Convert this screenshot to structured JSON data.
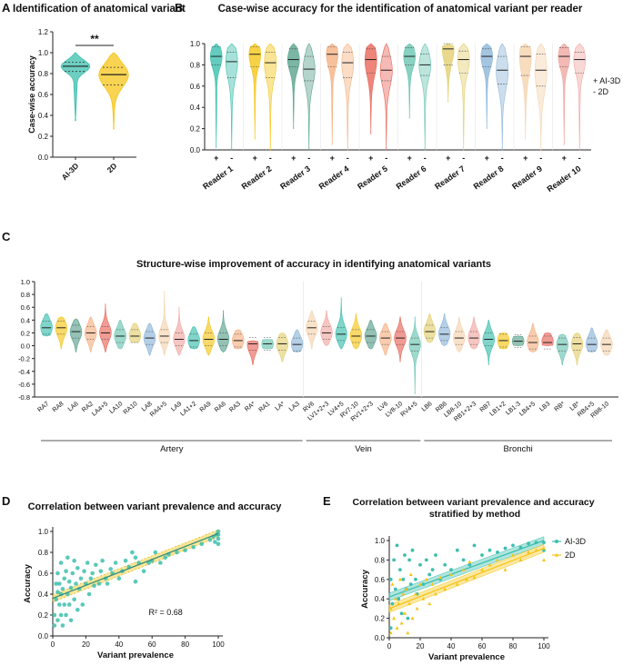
{
  "figure": {
    "panel_letters": [
      "A",
      "B",
      "C",
      "D",
      "E"
    ]
  },
  "colors": {
    "teal": "#3cbfae",
    "yellow": "#f5c518",
    "axis": "#222222",
    "text": "#111111"
  },
  "chart_data": [
    {
      "id": "A",
      "type": "violin",
      "title": "Identification of anatomical variant",
      "ylabel": "Case-wise accuracy",
      "ylim": [
        0,
        1.2
      ],
      "yticks": [
        "0.0",
        "0.2",
        "0.4",
        "0.6",
        "0.8",
        "1.0",
        "1.2"
      ],
      "categories": [
        "AI-3D",
        "2D"
      ],
      "series": [
        {
          "name": "AI-3D",
          "min": 0.35,
          "max": 1.0,
          "q1": 0.82,
          "median": 0.87,
          "q3": 0.91,
          "color": "#3cbfae"
        },
        {
          "name": "2D",
          "min": 0.27,
          "max": 1.0,
          "q1": 0.69,
          "median": 0.79,
          "q3": 0.86,
          "color": "#f5c518"
        }
      ],
      "significance": "**"
    },
    {
      "id": "B",
      "type": "violin",
      "title": "Case-wise accuracy for the identification of anatomical variant per reader",
      "ylim": [
        0,
        1.0
      ],
      "yticks": [
        "0.0",
        "0.2",
        "0.4",
        "0.6",
        "0.8",
        "1.0"
      ],
      "categories": [
        "Reader 1",
        "Reader 2",
        "Reader 3",
        "Reader 4",
        "Reader 5",
        "Reader 6",
        "Reader 7",
        "Reader 8",
        "Reader 9",
        "Reader 10"
      ],
      "pair_labels": [
        "+",
        "-"
      ],
      "legend": [
        "+ AI-3D",
        "- 2D"
      ],
      "colors": [
        "#3cbfae",
        "#f5c518",
        "#5aa28d",
        "#f5b182",
        "#e8665a",
        "#6cc5b2",
        "#e3cf72",
        "#8db6d8",
        "#f5d3ae",
        "#f0a7a2"
      ],
      "series": [
        {
          "name": "AI-3D",
          "min": [
            0.02,
            0.1,
            0.2,
            0.05,
            0.15,
            0.3,
            0.45,
            0.2,
            0.1,
            0.05
          ],
          "median": [
            0.88,
            0.9,
            0.85,
            0.9,
            0.85,
            0.88,
            0.95,
            0.88,
            0.88,
            0.88
          ],
          "q1": [
            0.8,
            0.78,
            0.78,
            0.78,
            0.72,
            0.8,
            0.8,
            0.78,
            0.7,
            0.78
          ],
          "q3": [
            0.97,
            0.97,
            0.95,
            0.97,
            0.95,
            0.96,
            1.0,
            0.95,
            0.97,
            0.96
          ]
        },
        {
          "name": "2D",
          "min": [
            0.0,
            0.0,
            0.0,
            0.0,
            0.0,
            0.0,
            0.0,
            0.0,
            0.0,
            0.0
          ],
          "median": [
            0.83,
            0.82,
            0.76,
            0.82,
            0.75,
            0.8,
            0.85,
            0.75,
            0.75,
            0.85
          ],
          "q1": [
            0.68,
            0.68,
            0.65,
            0.68,
            0.65,
            0.7,
            0.72,
            0.62,
            0.6,
            0.72
          ],
          "q3": [
            0.92,
            0.92,
            0.88,
            0.92,
            0.88,
            0.9,
            0.93,
            0.88,
            0.9,
            0.92
          ]
        }
      ]
    },
    {
      "id": "C",
      "type": "violin",
      "title": "Structure-wise improvement of accuracy in identifying anatomical variants",
      "ylim": [
        -0.8,
        1.0
      ],
      "yticks": [
        "-0.8",
        "-0.6",
        "-0.4",
        "-0.2",
        "0.0",
        "0.2",
        "0.4",
        "0.6",
        "0.8",
        "1.0"
      ],
      "categories": [
        "RA7",
        "RA8",
        "LA6",
        "RA2",
        "LA4+5",
        "LA10",
        "RA10",
        "LA8",
        "RA4+5",
        "LA9",
        "LA1+2",
        "RA9",
        "RA6",
        "RA3",
        "RA*",
        "RA1",
        "LA*",
        "LA3",
        "RV6",
        "LV1+2+3",
        "LV4+5",
        "RV7-10",
        "RV1+2+3",
        "LV6",
        "LV8-10",
        "RV4+5",
        "LB6",
        "RB6",
        "LB8-10",
        "RB1+2+3",
        "RB7",
        "LB1+2",
        "LB1-3",
        "LB4+5",
        "LB3",
        "RB*",
        "LB*",
        "RB4+5",
        "RB8-10"
      ],
      "groups": [
        {
          "name": "Artery",
          "count": 18
        },
        {
          "name": "Vein",
          "count": 8
        },
        {
          "name": "Bronchi",
          "count": 13
        }
      ],
      "medians": [
        0.28,
        0.28,
        0.22,
        0.2,
        0.2,
        0.15,
        0.15,
        0.12,
        0.15,
        0.1,
        0.08,
        0.1,
        0.1,
        0.08,
        0.03,
        0.03,
        0.03,
        0.02,
        0.28,
        0.2,
        0.18,
        0.15,
        0.15,
        0.12,
        0.12,
        0.02,
        0.22,
        0.18,
        0.12,
        0.12,
        0.1,
        0.08,
        0.07,
        0.05,
        0.05,
        0.02,
        0.03,
        0.02,
        0.02
      ],
      "mins": [
        0.15,
        -0.05,
        -0.1,
        -0.1,
        -0.1,
        -0.05,
        0.05,
        -0.15,
        -0.15,
        -0.15,
        -0.05,
        -0.15,
        -0.1,
        -0.05,
        -0.3,
        -0.05,
        -0.25,
        -0.1,
        -0.05,
        0.0,
        -0.05,
        -0.05,
        -0.05,
        -0.15,
        -0.25,
        -0.75,
        0.05,
        0.0,
        -0.1,
        -0.05,
        -0.3,
        -0.05,
        0.0,
        -0.1,
        0.0,
        -0.3,
        -0.3,
        -0.1,
        -0.15
      ],
      "maxs": [
        0.5,
        0.45,
        0.42,
        0.45,
        0.65,
        0.4,
        0.35,
        0.35,
        0.85,
        0.6,
        0.3,
        0.45,
        0.55,
        0.25,
        0.08,
        0.1,
        0.2,
        0.25,
        0.55,
        0.55,
        0.75,
        0.5,
        0.4,
        0.35,
        0.45,
        0.45,
        0.5,
        0.5,
        0.45,
        0.45,
        0.4,
        0.2,
        0.15,
        0.35,
        0.2,
        0.18,
        0.2,
        0.28,
        0.25
      ]
    },
    {
      "id": "D",
      "type": "scatter",
      "title": "Correlation between variant prevalence and accuracy",
      "xlabel": "Variant prevalence",
      "ylabel": "Accuracy",
      "xlim": [
        0,
        100
      ],
      "ylim": [
        0,
        1.0
      ],
      "xticks": [
        "0",
        "20",
        "40",
        "60",
        "80",
        "100"
      ],
      "yticks": [
        "0.0",
        "0.2",
        "0.4",
        "0.6",
        "0.8",
        "1.0"
      ],
      "fit": {
        "intercept": 0.36,
        "slope": 0.0062
      },
      "annotation": "R² = 0.68",
      "points": [
        [
          1,
          0.1
        ],
        [
          1,
          0.2
        ],
        [
          2,
          0.35
        ],
        [
          2,
          0.5
        ],
        [
          3,
          0.15
        ],
        [
          3,
          0.42
        ],
        [
          3,
          0.6
        ],
        [
          4,
          0.3
        ],
        [
          4,
          0.5
        ],
        [
          5,
          0.2
        ],
        [
          5,
          0.4
        ],
        [
          5,
          0.7
        ],
        [
          6,
          0.1
        ],
        [
          6,
          0.45
        ],
        [
          7,
          0.3
        ],
        [
          7,
          0.55
        ],
        [
          8,
          0.2
        ],
        [
          8,
          0.62
        ],
        [
          9,
          0.4
        ],
        [
          9,
          0.75
        ],
        [
          10,
          0.3
        ],
        [
          10,
          0.52
        ],
        [
          11,
          0.15
        ],
        [
          11,
          0.46
        ],
        [
          12,
          0.6
        ],
        [
          13,
          0.35
        ],
        [
          13,
          0.72
        ],
        [
          14,
          0.5
        ],
        [
          15,
          0.25
        ],
        [
          15,
          0.65
        ],
        [
          16,
          0.45
        ],
        [
          17,
          0.55
        ],
        [
          18,
          0.3
        ],
        [
          19,
          0.62
        ],
        [
          20,
          0.5
        ],
        [
          21,
          0.7
        ],
        [
          22,
          0.4
        ],
        [
          23,
          0.55
        ],
        [
          24,
          0.6
        ],
        [
          25,
          0.48
        ],
        [
          26,
          0.68
        ],
        [
          28,
          0.5
        ],
        [
          29,
          0.62
        ],
        [
          30,
          0.72
        ],
        [
          32,
          0.55
        ],
        [
          33,
          0.5
        ],
        [
          35,
          0.64
        ],
        [
          36,
          0.6
        ],
        [
          38,
          0.7
        ],
        [
          40,
          0.55
        ],
        [
          42,
          0.62
        ],
        [
          44,
          0.72
        ],
        [
          46,
          0.66
        ],
        [
          48,
          0.8
        ],
        [
          50,
          0.52
        ],
        [
          50,
          0.75
        ],
        [
          52,
          0.7
        ],
        [
          55,
          0.62
        ],
        [
          58,
          0.7
        ],
        [
          60,
          0.72
        ],
        [
          62,
          0.8
        ],
        [
          65,
          0.7
        ],
        [
          68,
          0.75
        ],
        [
          70,
          0.78
        ],
        [
          75,
          0.8
        ],
        [
          80,
          0.82
        ],
        [
          85,
          0.85
        ],
        [
          90,
          0.88
        ],
        [
          95,
          0.92
        ],
        [
          97,
          0.95
        ],
        [
          98,
          0.9
        ],
        [
          99,
          0.97
        ],
        [
          100,
          0.88
        ],
        [
          100,
          0.93
        ],
        [
          100,
          0.97
        ],
        [
          100,
          1.0
        ]
      ]
    },
    {
      "id": "E",
      "type": "scatter",
      "title": "Correlation between variant prevalence and accuracy stratified by method",
      "xlabel": "Variant prevalence",
      "ylabel": "Accuracy",
      "xlim": [
        0,
        100
      ],
      "ylim": [
        0,
        1.0
      ],
      "xticks": [
        "0",
        "20",
        "40",
        "60",
        "80",
        "100"
      ],
      "yticks": [
        "0.0",
        "0.2",
        "0.4",
        "0.6",
        "0.8",
        "1.0"
      ],
      "legend": [
        "AI-3D",
        "2D"
      ],
      "series": [
        {
          "name": "AI-3D",
          "color": "#3cbfae",
          "fit": {
            "intercept": 0.42,
            "slope": 0.0058
          },
          "points": [
            [
              1,
              0.1
            ],
            [
              1,
              0.6
            ],
            [
              2,
              0.35
            ],
            [
              3,
              0.8
            ],
            [
              4,
              0.5
            ],
            [
              5,
              0.95
            ],
            [
              6,
              0.4
            ],
            [
              7,
              0.7
            ],
            [
              8,
              0.25
            ],
            [
              9,
              0.6
            ],
            [
              10,
              0.85
            ],
            [
              11,
              0.5
            ],
            [
              12,
              0.2
            ],
            [
              13,
              0.8
            ],
            [
              14,
              0.55
            ],
            [
              15,
              0.9
            ],
            [
              17,
              0.6
            ],
            [
              18,
              0.45
            ],
            [
              20,
              0.75
            ],
            [
              22,
              0.55
            ],
            [
              24,
              0.8
            ],
            [
              26,
              0.65
            ],
            [
              28,
              0.7
            ],
            [
              30,
              0.85
            ],
            [
              33,
              0.6
            ],
            [
              36,
              0.75
            ],
            [
              40,
              0.7
            ],
            [
              44,
              0.9
            ],
            [
              48,
              0.8
            ],
            [
              52,
              0.75
            ],
            [
              55,
              0.95
            ],
            [
              60,
              0.85
            ],
            [
              65,
              0.9
            ],
            [
              70,
              0.88
            ],
            [
              75,
              0.92
            ],
            [
              80,
              0.95
            ],
            [
              85,
              0.93
            ],
            [
              90,
              0.97
            ],
            [
              95,
              0.98
            ],
            [
              100,
              0.98
            ],
            [
              100,
              0.9
            ]
          ]
        },
        {
          "name": "2D",
          "color": "#f5c518",
          "fit": {
            "intercept": 0.3,
            "slope": 0.0062
          },
          "points": [
            [
              1,
              0.05
            ],
            [
              1,
              0.3
            ],
            [
              2,
              0.55
            ],
            [
              3,
              0.2
            ],
            [
              4,
              0.4
            ],
            [
              5,
              0.1
            ],
            [
              6,
              0.35
            ],
            [
              7,
              0.6
            ],
            [
              8,
              0.15
            ],
            [
              9,
              0.45
            ],
            [
              10,
              0.25
            ],
            [
              11,
              0.5
            ],
            [
              12,
              0.05
            ],
            [
              13,
              0.35
            ],
            [
              14,
              0.65
            ],
            [
              15,
              0.2
            ],
            [
              17,
              0.45
            ],
            [
              18,
              0.3
            ],
            [
              20,
              0.55
            ],
            [
              22,
              0.4
            ],
            [
              24,
              0.6
            ],
            [
              26,
              0.35
            ],
            [
              28,
              0.55
            ],
            [
              30,
              0.45
            ],
            [
              33,
              0.62
            ],
            [
              36,
              0.5
            ],
            [
              40,
              0.65
            ],
            [
              44,
              0.55
            ],
            [
              48,
              0.7
            ],
            [
              50,
              0.6
            ],
            [
              52,
              0.78
            ],
            [
              55,
              0.62
            ],
            [
              60,
              0.7
            ],
            [
              65,
              0.75
            ],
            [
              70,
              0.8
            ],
            [
              75,
              0.7
            ],
            [
              80,
              0.85
            ],
            [
              85,
              0.8
            ],
            [
              90,
              0.88
            ],
            [
              95,
              0.9
            ],
            [
              100,
              0.92
            ],
            [
              100,
              0.8
            ]
          ]
        }
      ]
    }
  ]
}
